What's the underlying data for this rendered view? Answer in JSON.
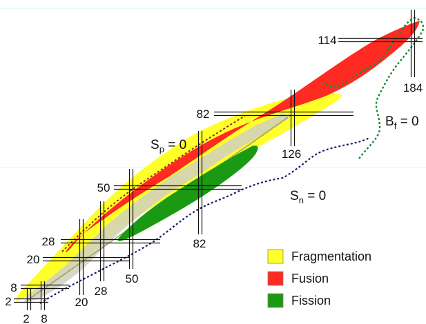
{
  "colors": {
    "fragmentation": "#ffff2a",
    "fusion": "#ff2a22",
    "fission": "#1a9a12",
    "stable_grid": "#c8c8a0",
    "neutron_dripline": "#1a1a6e",
    "fission_barrier": "#1e8a3a",
    "magic_lines": "#111111"
  },
  "labels": {
    "proton_dripline": {
      "main": "S",
      "sub": "p",
      "rest": " = 0"
    },
    "neutron_dripline": {
      "main": "S",
      "sub": "n",
      "rest": " = 0"
    },
    "fission_barrier": {
      "main": "B",
      "sub": "f",
      "rest": " = 0"
    }
  },
  "magic_numbers": {
    "proton": [
      "2",
      "8",
      "20",
      "28",
      "50",
      "82",
      "114"
    ],
    "neutron": [
      "2",
      "8",
      "20",
      "28",
      "50",
      "82",
      "126",
      "184"
    ]
  },
  "legend": [
    {
      "label": "Fragmentation",
      "color_key": "fragmentation"
    },
    {
      "label": "Fusion",
      "color_key": "fusion"
    },
    {
      "label": "Fission",
      "color_key": "fission"
    }
  ]
}
